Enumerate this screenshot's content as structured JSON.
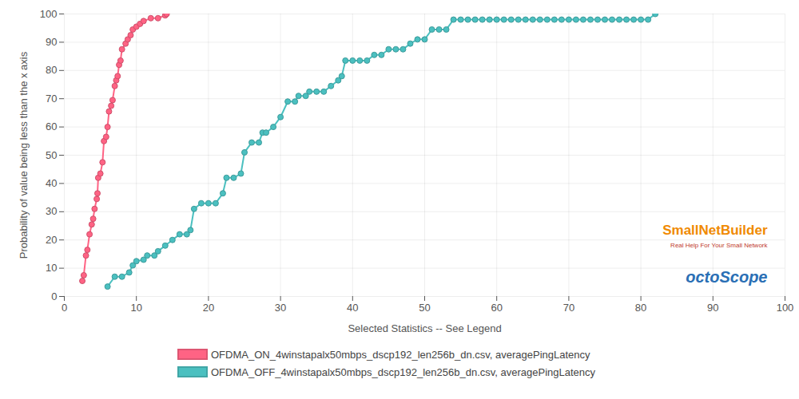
{
  "chart_data": {
    "type": "line",
    "x_label": "Selected Statistics -- See Legend",
    "y_label": "Probability of value being less than the x axis",
    "xlim": [
      0,
      100
    ],
    "ylim": [
      0,
      100
    ],
    "xticks": [
      0,
      10,
      20,
      30,
      40,
      50,
      60,
      70,
      80,
      90,
      100
    ],
    "yticks": [
      0,
      10,
      20,
      30,
      40,
      50,
      60,
      70,
      80,
      90,
      100
    ],
    "grid": true,
    "legend": "bottom",
    "marker": "circle",
    "annotations": [
      "SmallNetBuilder",
      "Real Help For Your Small Network",
      "octoScope"
    ],
    "series": [
      {
        "name": "OFDMA_ON_4winstapalx50mbps_dscp192_len256b_dn.csv, averagePingLatency",
        "color": "#ff6384",
        "x": [
          2.5,
          2.7,
          3.0,
          3.2,
          3.5,
          3.8,
          4.0,
          4.2,
          4.5,
          4.6,
          4.7,
          5.0,
          5.3,
          5.5,
          5.8,
          6.0,
          6.2,
          6.5,
          6.7,
          7.0,
          7.2,
          7.4,
          7.6,
          7.8,
          8.0,
          8.5,
          8.8,
          9.2,
          9.5,
          10.0,
          10.5,
          11.0,
          12.0,
          13.0,
          14.0,
          14.2
        ],
        "values": [
          5.5,
          7.5,
          14.5,
          16.5,
          22,
          25.5,
          27.5,
          31,
          34.5,
          36.5,
          42,
          43.5,
          47.5,
          55,
          56.5,
          60,
          65.5,
          67.5,
          69.5,
          74.5,
          76.5,
          78,
          82,
          83.5,
          87.5,
          89.5,
          91,
          92.5,
          94.5,
          95.5,
          96.5,
          97.5,
          98.5,
          98.5,
          99.5,
          100
        ]
      },
      {
        "name": "OFDMA_OFF_4winstapalx50mbps_dscp192_len256b_dn.csv, averagePingLatency",
        "color": "#4bc0c0",
        "x": [
          6,
          7,
          8,
          9,
          9.5,
          10,
          11,
          11.5,
          12.5,
          13,
          14,
          15,
          16,
          17,
          17.5,
          18,
          19,
          20,
          21,
          22,
          22.5,
          23.5,
          24.5,
          25,
          26,
          27,
          27.5,
          28,
          29,
          30,
          31,
          32,
          32.5,
          33.5,
          34,
          35,
          36,
          37,
          38,
          38.5,
          39,
          40,
          41,
          42,
          43,
          44,
          45,
          46,
          47,
          48,
          49,
          50,
          51,
          52,
          53,
          54,
          55,
          56,
          57,
          58,
          59,
          60,
          61,
          62,
          63,
          64,
          65,
          66,
          67,
          68,
          69,
          70,
          71,
          72,
          73,
          74,
          75,
          76,
          77,
          78,
          79,
          80,
          81,
          82
        ],
        "values": [
          3.5,
          7,
          7,
          8.5,
          11,
          12.5,
          13,
          14.5,
          14.5,
          16,
          18,
          20,
          22,
          22,
          23.5,
          31,
          33,
          33,
          33,
          36.5,
          42,
          42,
          43.5,
          51,
          54.5,
          54.5,
          58,
          58,
          60,
          63.5,
          69,
          69,
          71,
          71,
          72.5,
          72.5,
          72.5,
          74.5,
          76.5,
          78,
          83.5,
          83.5,
          83.5,
          83.5,
          85.5,
          85.5,
          87.5,
          87.5,
          87.5,
          89.5,
          91,
          91,
          94.5,
          94.5,
          94.5,
          98,
          98,
          98,
          98,
          98,
          98,
          98,
          98,
          98,
          98,
          98,
          98,
          98,
          98,
          98,
          98,
          98,
          98,
          98,
          98,
          98,
          98,
          98,
          98,
          98,
          98,
          98,
          98,
          100
        ]
      }
    ]
  }
}
